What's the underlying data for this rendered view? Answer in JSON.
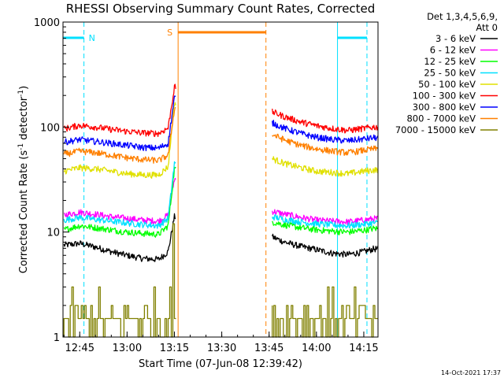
{
  "chart_data": {
    "type": "line",
    "title": "RHESSI Observing Summary Count Rates, Corrected",
    "xlabel": "Start Time (07-Jun-08 12:39:42)",
    "ylabel": "Corrected Count Rate (s⁻¹ detector⁻¹)",
    "ylabel_main": "Corrected Count Rate (s",
    "ylabel_sup1": "-1",
    "ylabel_mid": " detector",
    "ylabel_sup2": "-1",
    "ylabel_end": ")",
    "yscale": "log",
    "ylim": [
      1,
      1000
    ],
    "xlim": [
      "12:39:42",
      "14:19:30"
    ],
    "y_ticks": [
      "1",
      "10",
      "100",
      "1000"
    ],
    "x_ticks": [
      "12:45",
      "13:00",
      "13:15",
      "13:30",
      "13:45",
      "14:00",
      "14:15"
    ],
    "legend_header": [
      "Det 1,3,4,5,6,9,",
      "Att 0"
    ],
    "legend_position": "right",
    "annotations": {
      "night_label": "N",
      "saa_label": "S",
      "footer_date": "14-Oct-2021 17:37"
    },
    "night_intervals": [
      [
        "12:39:42",
        "12:46:20"
      ],
      [
        "14:06:40",
        "14:16:00"
      ]
    ],
    "saa_interval": [
      "13:16:10",
      "13:44:00"
    ],
    "data_gap": [
      "13:15:30",
      "13:46:00"
    ],
    "series": [
      {
        "name": "3 - 6 keV",
        "color": "#000000",
        "times": [
          "12:40",
          "12:45",
          "12:50",
          "12:55",
          "13:00",
          "13:05",
          "13:10",
          "13:13",
          "13:15",
          "13:46",
          "13:50",
          "13:55",
          "14:00",
          "14:05",
          "14:10",
          "14:15",
          "14:18"
        ],
        "values": [
          7.5,
          7.8,
          7.2,
          6.5,
          6.0,
          5.6,
          5.5,
          6.5,
          14,
          9.0,
          8.0,
          7.3,
          6.8,
          6.3,
          6.1,
          6.5,
          6.9
        ]
      },
      {
        "name": "6 - 12 keV",
        "color": "#ff00ff",
        "times": [
          "12:40",
          "12:45",
          "12:50",
          "12:55",
          "13:00",
          "13:05",
          "13:10",
          "13:13",
          "13:15",
          "13:46",
          "13:50",
          "13:55",
          "14:00",
          "14:05",
          "14:10",
          "14:15",
          "14:18"
        ],
        "values": [
          14.5,
          15.5,
          14.8,
          14.0,
          13.5,
          13.0,
          12.7,
          14.5,
          32,
          15.8,
          14.8,
          13.8,
          13.0,
          12.7,
          12.5,
          13.0,
          13.4
        ]
      },
      {
        "name": "12 - 25 keV",
        "color": "#00ff00",
        "times": [
          "12:40",
          "12:45",
          "12:50",
          "12:55",
          "13:00",
          "13:05",
          "13:10",
          "13:13",
          "13:15",
          "13:46",
          "13:50",
          "13:55",
          "14:00",
          "14:05",
          "14:10",
          "14:15",
          "14:18"
        ],
        "values": [
          10.5,
          11.5,
          11.0,
          10.5,
          10.0,
          9.7,
          9.5,
          11.5,
          40,
          12.5,
          11.7,
          11.0,
          10.5,
          10.2,
          10.0,
          10.4,
          10.8
        ]
      },
      {
        "name": "25 - 50 keV",
        "color": "#00e0ff",
        "times": [
          "12:40",
          "12:45",
          "12:50",
          "12:55",
          "13:00",
          "13:05",
          "13:10",
          "13:13",
          "13:15",
          "13:46",
          "13:50",
          "13:55",
          "14:00",
          "14:05",
          "14:10",
          "14:15",
          "14:18"
        ],
        "values": [
          13.0,
          13.8,
          13.2,
          12.7,
          12.2,
          11.8,
          11.5,
          13.5,
          45,
          14.0,
          13.2,
          12.5,
          12.0,
          11.7,
          11.5,
          11.9,
          12.2
        ]
      },
      {
        "name": "50 - 100 keV",
        "color": "#e0e000",
        "times": [
          "12:40",
          "12:45",
          "12:50",
          "12:55",
          "13:00",
          "13:05",
          "13:10",
          "13:13",
          "13:15",
          "13:46",
          "13:50",
          "13:55",
          "14:00",
          "14:05",
          "14:10",
          "14:15",
          "14:18"
        ],
        "values": [
          38,
          41,
          40,
          38,
          36,
          35,
          35,
          42,
          170,
          50,
          45,
          41,
          38,
          37,
          36,
          38,
          39
        ]
      },
      {
        "name": "100 - 300 keV",
        "color": "#ff0000",
        "times": [
          "12:40",
          "12:45",
          "12:50",
          "12:55",
          "13:00",
          "13:05",
          "13:10",
          "13:13",
          "13:15",
          "13:46",
          "13:50",
          "13:55",
          "14:00",
          "14:05",
          "14:10",
          "14:15",
          "14:18"
        ],
        "values": [
          96,
          104,
          100,
          95,
          91,
          88,
          87,
          98,
          240,
          140,
          125,
          112,
          103,
          97,
          93,
          97,
          100
        ]
      },
      {
        "name": "300 - 800 keV",
        "color": "#0000ff",
        "times": [
          "12:40",
          "12:45",
          "12:50",
          "12:55",
          "13:00",
          "13:05",
          "13:10",
          "13:13",
          "13:15",
          "13:46",
          "13:50",
          "13:55",
          "14:00",
          "14:05",
          "14:10",
          "14:15",
          "14:18"
        ],
        "values": [
          72,
          76,
          73,
          70,
          67,
          64,
          63,
          70,
          190,
          110,
          97,
          87,
          80,
          76,
          74,
          77,
          79
        ]
      },
      {
        "name": "800 - 7000 keV",
        "color": "#ff8000",
        "times": [
          "12:40",
          "12:45",
          "12:50",
          "12:55",
          "13:00",
          "13:05",
          "13:10",
          "13:13",
          "13:15",
          "13:46",
          "13:50",
          "13:55",
          "14:00",
          "14:05",
          "14:10",
          "14:15",
          "14:18"
        ],
        "values": [
          55,
          59,
          57,
          54,
          51,
          49,
          48,
          54,
          150,
          85,
          75,
          67,
          62,
          59,
          57,
          60,
          62
        ]
      },
      {
        "name": "7000 - 15000 keV",
        "color": "#808000",
        "times": [
          "12:40",
          "12:45",
          "12:50",
          "12:55",
          "13:00",
          "13:05",
          "13:10",
          "13:13",
          "13:14:30",
          "13:15",
          "13:46",
          "13:50",
          "13:55",
          "14:00",
          "14:05",
          "14:10",
          "14:15",
          "14:18"
        ],
        "values": [
          2.0,
          2.5,
          1.5,
          2.0,
          1.5,
          1.2,
          1.5,
          2.5,
          4.5,
          12,
          2.0,
          2.5,
          1.5,
          1.2,
          2.0,
          1.5,
          2.5,
          2.0
        ]
      }
    ]
  }
}
